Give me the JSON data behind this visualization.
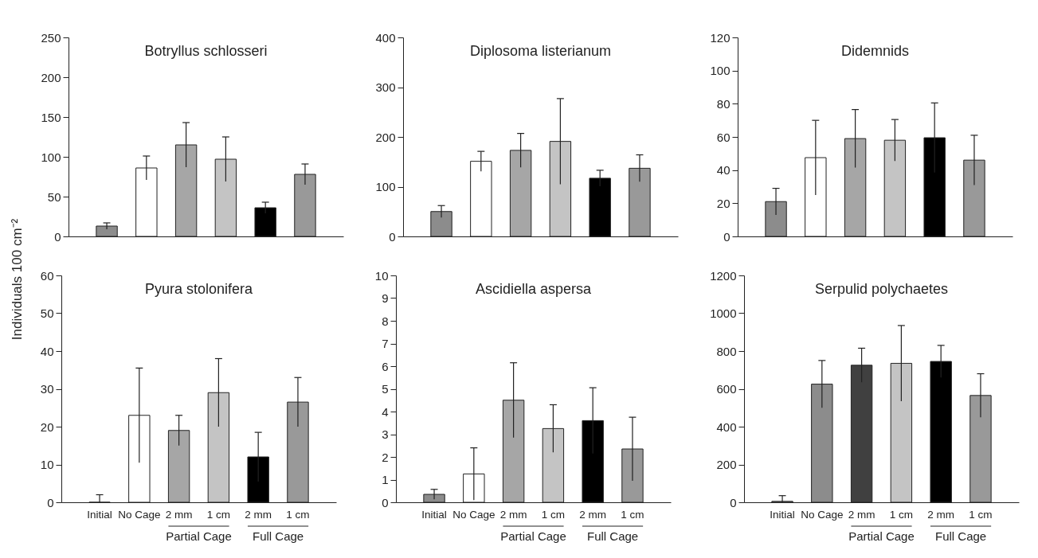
{
  "chart_data": [
    {
      "type": "bar",
      "title": "Botryllus schlosseri",
      "ylabel": "Individuals 100 cm⁻²",
      "categories": [
        null,
        null,
        null,
        null,
        null,
        null
      ],
      "values": [
        13,
        86,
        115,
        97,
        36,
        78
      ],
      "errors": [
        4,
        15,
        28,
        28,
        7,
        13
      ],
      "colors": [
        "#8c8c8c",
        "#ffffff",
        "#a6a6a6",
        "#c4c4c4",
        "#000000",
        "#999999"
      ],
      "ylim": [
        0,
        250
      ],
      "yticks": [
        0,
        50,
        100,
        150,
        200,
        250
      ],
      "tick_labels": "y"
    },
    {
      "type": "bar",
      "title": "Diplosoma listerianum",
      "categories": [
        null,
        null,
        null,
        null,
        null,
        null
      ],
      "values": [
        50,
        151,
        173,
        191,
        117,
        137
      ],
      "errors": [
        12,
        20,
        34,
        86,
        16,
        27
      ],
      "colors": [
        "#8c8c8c",
        "#ffffff",
        "#a6a6a6",
        "#c4c4c4",
        "#000000",
        "#999999"
      ],
      "ylim": [
        0,
        400
      ],
      "yticks": [
        0,
        100,
        200,
        300,
        400
      ],
      "tick_labels": "y"
    },
    {
      "type": "bar",
      "title": "Didemnids",
      "categories": [
        null,
        null,
        null,
        null,
        null,
        null
      ],
      "values": [
        21,
        47.5,
        59,
        58,
        59.5,
        46
      ],
      "errors": [
        8,
        22.5,
        17.5,
        12.5,
        21,
        15
      ],
      "colors": [
        "#8c8c8c",
        "#ffffff",
        "#a6a6a6",
        "#c4c4c4",
        "#000000",
        "#999999"
      ],
      "ylim": [
        0,
        120
      ],
      "yticks": [
        0,
        20,
        40,
        60,
        80,
        100,
        120
      ],
      "tick_labels": "y"
    },
    {
      "type": "bar",
      "title": "Pyura stolonifera",
      "categories": [
        "Initial",
        "No Cage",
        "2 mm",
        "1 cm",
        "2 mm",
        "1 cm"
      ],
      "values": [
        0,
        23,
        19,
        29,
        12,
        26.5
      ],
      "errors": [
        2,
        12.5,
        4,
        9,
        6.5,
        6.5
      ],
      "colors": [
        "#8c8c8c",
        "#ffffff",
        "#a6a6a6",
        "#c4c4c4",
        "#000000",
        "#999999"
      ],
      "ylim": [
        0,
        60
      ],
      "yticks": [
        0,
        10,
        20,
        30,
        40,
        50,
        60
      ],
      "annotations": [
        "Partial Cage",
        "Full Cage"
      ]
    },
    {
      "type": "bar",
      "title": "Ascidiella aspersa",
      "categories": [
        "Initial",
        "No Cage",
        "2 mm",
        "1 cm",
        "2 mm",
        "1 cm"
      ],
      "values": [
        0.35,
        1.25,
        4.5,
        3.25,
        3.6,
        2.35
      ],
      "errors": [
        0.22,
        1.15,
        1.65,
        1.05,
        1.45,
        1.4
      ],
      "colors": [
        "#8c8c8c",
        "#ffffff",
        "#a6a6a6",
        "#c4c4c4",
        "#000000",
        "#999999"
      ],
      "ylim": [
        0,
        10
      ],
      "yticks": [
        0,
        1,
        2,
        3,
        4,
        5,
        6,
        7,
        8,
        9,
        10
      ],
      "annotations": [
        "Partial Cage",
        "Full Cage"
      ]
    },
    {
      "type": "bar",
      "title": "Serpulid polychaetes",
      "categories": [
        "Initial",
        "No Cage",
        "2 mm",
        "1 cm",
        "2 mm",
        "1 cm"
      ],
      "values": [
        5,
        625,
        725,
        735,
        745,
        565
      ],
      "errors": [
        30,
        125,
        90,
        200,
        85,
        115
      ],
      "colors": [
        "#8c8c8c",
        "#8c8c8c",
        "#404040",
        "#c4c4c4",
        "#000000",
        "#999999"
      ],
      "ylim": [
        0,
        1200
      ],
      "yticks": [
        0,
        200,
        400,
        600,
        800,
        1000,
        1200
      ],
      "annotations": [
        "Partial Cage",
        "Full Cage"
      ]
    }
  ]
}
